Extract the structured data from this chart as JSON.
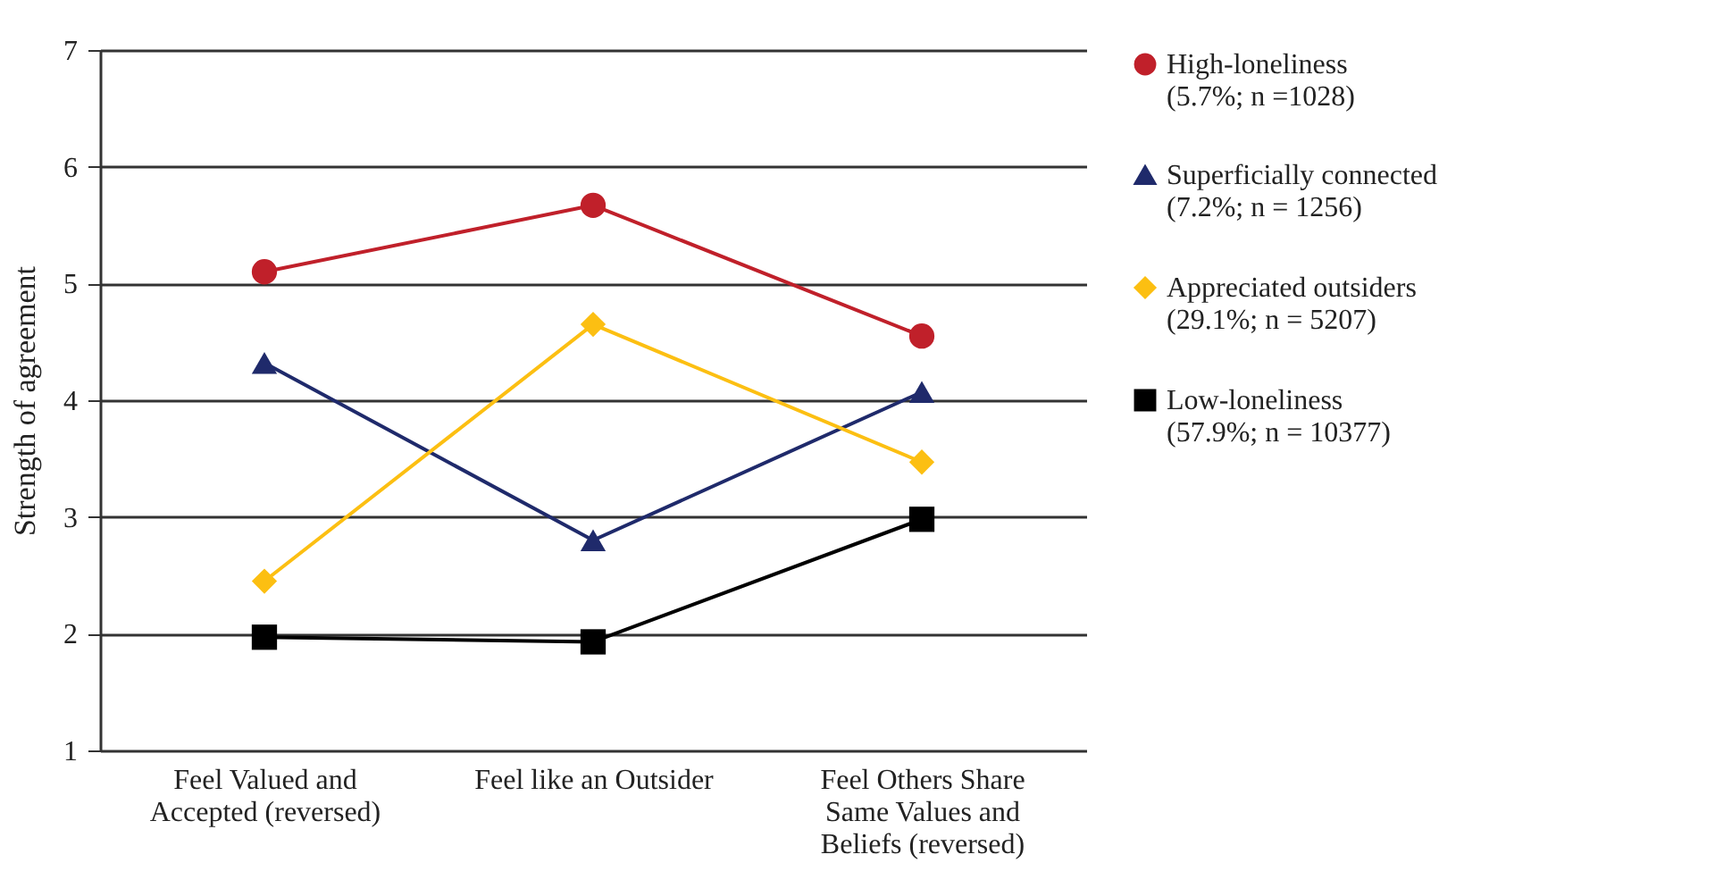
{
  "chart_data": {
    "type": "line",
    "ylabel": "Strength of agreement",
    "categories": [
      "Feel Valued and Accepted (reversed)",
      "Feel like an Outsider",
      "Feel Others Share Same Values and Beliefs (reversed)"
    ],
    "ylim": [
      1,
      7
    ],
    "yticks": [
      1,
      2,
      3,
      4,
      5,
      6,
      7
    ],
    "grid": "y",
    "legend": "right",
    "line_style": "solid",
    "series": [
      {
        "name": "High-loneliness (5.7%; n =1028)",
        "color": "#c0202a",
        "marker": "circle",
        "values": [
          5.1,
          5.67,
          4.55
        ]
      },
      {
        "name": "Superficially connected (7.2%; n = 1256)",
        "color": "#1f2a6b",
        "marker": "triangle",
        "values": [
          4.32,
          2.8,
          4.07
        ]
      },
      {
        "name": "Appreciated outsiders (29.1%; n = 5207)",
        "color": "#fcbf12",
        "marker": "diamond",
        "values": [
          2.45,
          4.65,
          3.47
        ]
      },
      {
        "name": "Low-loneliness (57.9%; n = 10377)",
        "color": "#000000",
        "marker": "square",
        "values": [
          1.97,
          1.93,
          2.98
        ]
      }
    ]
  }
}
